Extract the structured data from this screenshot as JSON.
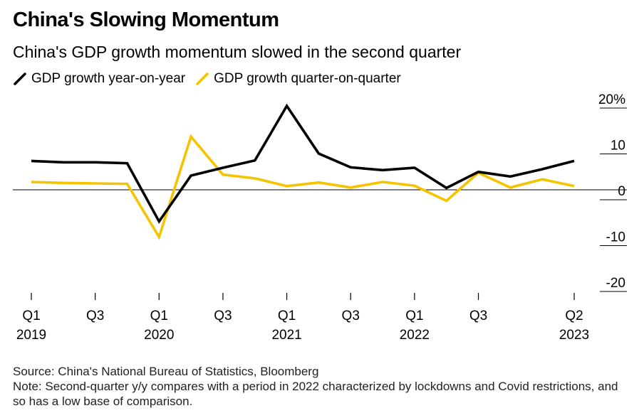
{
  "title": "China's Slowing Momentum",
  "subtitle": "China's GDP growth momentum slowed in the second quarter",
  "legend": [
    {
      "label": "GDP growth year-on-year",
      "color": "#000000"
    },
    {
      "label": "GDP growth quarter-on-quarter",
      "color": "#F5C400"
    }
  ],
  "source": "Source: China's National Bureau of Statistics, Bloomberg",
  "note": "Note: Second-quarter y/y compares with a period in 2022 characterized by lockdowns and Covid restrictions, and so has a low base of comparison.",
  "chart_data": {
    "type": "line",
    "x": [
      "2019 Q1",
      "2019 Q2",
      "2019 Q3",
      "2019 Q4",
      "2020 Q1",
      "2020 Q2",
      "2020 Q3",
      "2020 Q4",
      "2021 Q1",
      "2021 Q2",
      "2021 Q3",
      "2021 Q4",
      "2022 Q1",
      "2022 Q2",
      "2022 Q3",
      "2022 Q4",
      "2023 Q1",
      "2023 Q2"
    ],
    "series": [
      {
        "name": "GDP growth year-on-year",
        "color": "#000000",
        "values": [
          6.3,
          6.0,
          6.0,
          5.8,
          -6.9,
          3.1,
          4.8,
          6.4,
          18.3,
          7.9,
          4.9,
          4.3,
          4.8,
          0.4,
          3.9,
          2.9,
          4.5,
          6.3
        ]
      },
      {
        "name": "GDP growth quarter-on-quarter",
        "color": "#F5C400",
        "values": [
          1.7,
          1.5,
          1.4,
          1.3,
          -10.3,
          11.6,
          3.3,
          2.5,
          0.8,
          1.6,
          0.5,
          1.7,
          0.9,
          -2.4,
          3.7,
          0.5,
          2.3,
          0.8
        ]
      }
    ],
    "xticks": [
      {
        "index": 0,
        "label": "Q1",
        "year": "2019"
      },
      {
        "index": 2,
        "label": "Q3",
        "year": ""
      },
      {
        "index": 4,
        "label": "Q1",
        "year": "2020"
      },
      {
        "index": 6,
        "label": "Q3",
        "year": ""
      },
      {
        "index": 8,
        "label": "Q1",
        "year": "2021"
      },
      {
        "index": 10,
        "label": "Q3",
        "year": ""
      },
      {
        "index": 12,
        "label": "Q1",
        "year": "2022"
      },
      {
        "index": 14,
        "label": "Q3",
        "year": ""
      },
      {
        "index": 17,
        "label": "Q2",
        "year": "2023"
      }
    ],
    "yticks": [
      {
        "value": 20,
        "label": "20%"
      },
      {
        "value": 10,
        "label": "10"
      },
      {
        "value": 0,
        "label": "0"
      },
      {
        "value": -10,
        "label": "-10"
      },
      {
        "value": -20,
        "label": "-20"
      }
    ],
    "ylim": [
      -20,
      20
    ],
    "zero_line": true,
    "grid": false
  }
}
